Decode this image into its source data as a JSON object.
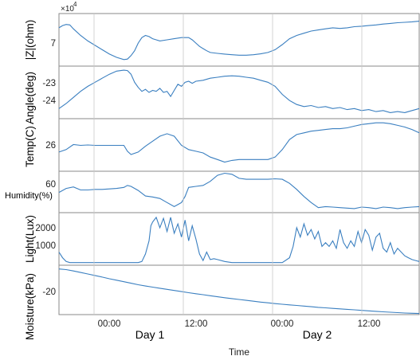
{
  "chart_data": {
    "type": "line",
    "xlabel": "Time",
    "x_tick_labels": [
      "00:00",
      "12:00",
      "00:00",
      "12:00"
    ],
    "day_labels": [
      "Day 1",
      "Day 2"
    ],
    "series_color": "#3a7fc0",
    "panels": [
      {
        "id": "impedance",
        "ylabel": "|Z|(ohm)",
        "exponent_label": "×10",
        "exponent_power": "4",
        "yticks": [
          {
            "label": "7",
            "value": 7.0
          }
        ],
        "ylim": [
          5.8,
          8.2
        ],
        "x": [
          0,
          1,
          2,
          3,
          4,
          6,
          8,
          10,
          12,
          14,
          16,
          18,
          19,
          20,
          21,
          22,
          23,
          24,
          25,
          26,
          27,
          28,
          30,
          32,
          34,
          36,
          37,
          38,
          39,
          40,
          41,
          42,
          44,
          46,
          48,
          50,
          52,
          54,
          56,
          58,
          60,
          62,
          64,
          66,
          68,
          70,
          72,
          74,
          76,
          78,
          80,
          82,
          84,
          86,
          88,
          90,
          92,
          94,
          96,
          98,
          100
        ],
        "y": [
          7.55,
          7.65,
          7.7,
          7.68,
          7.5,
          7.2,
          6.95,
          6.75,
          6.55,
          6.35,
          6.2,
          6.1,
          6.12,
          6.28,
          6.5,
          6.85,
          7.1,
          7.2,
          7.15,
          7.05,
          7.0,
          6.95,
          7.0,
          7.05,
          7.1,
          7.1,
          7.0,
          6.85,
          6.7,
          6.6,
          6.5,
          6.42,
          6.38,
          6.35,
          6.32,
          6.3,
          6.3,
          6.32,
          6.36,
          6.42,
          6.55,
          6.78,
          7.05,
          7.2,
          7.3,
          7.4,
          7.45,
          7.5,
          7.55,
          7.52,
          7.55,
          7.6,
          7.62,
          7.65,
          7.68,
          7.72,
          7.75,
          7.78,
          7.8,
          7.82,
          7.85
        ]
      },
      {
        "id": "angle",
        "ylabel": "Angle(deg)",
        "yticks": [
          {
            "label": "-23",
            "value": -23.0
          },
          {
            "label": "-24",
            "value": -24.0
          }
        ],
        "ylim": [
          -24.9,
          -22.3
        ],
        "x": [
          0,
          2,
          4,
          6,
          8,
          10,
          12,
          14,
          16,
          18,
          19,
          20,
          21,
          22,
          23,
          24,
          25,
          26,
          27,
          28,
          29,
          30,
          31,
          32,
          33,
          34,
          35,
          36,
          37,
          38,
          40,
          42,
          44,
          46,
          48,
          50,
          52,
          54,
          56,
          58,
          60,
          62,
          64,
          66,
          68,
          70,
          72,
          74,
          76,
          78,
          80,
          82,
          84,
          86,
          88,
          90,
          92,
          94,
          96,
          98,
          100
        ],
        "y": [
          -24.4,
          -24.15,
          -23.85,
          -23.55,
          -23.3,
          -23.1,
          -22.9,
          -22.7,
          -22.55,
          -22.5,
          -22.52,
          -22.7,
          -23.1,
          -23.35,
          -23.55,
          -23.45,
          -23.6,
          -23.5,
          -23.55,
          -23.4,
          -23.6,
          -23.55,
          -23.8,
          -23.5,
          -23.2,
          -23.3,
          -23.1,
          -23.05,
          -23.15,
          -23.05,
          -23.0,
          -22.9,
          -22.85,
          -22.8,
          -22.78,
          -22.8,
          -22.85,
          -22.9,
          -23.0,
          -23.1,
          -23.3,
          -23.7,
          -24.0,
          -24.2,
          -24.3,
          -24.25,
          -24.35,
          -24.3,
          -24.4,
          -24.35,
          -24.45,
          -24.4,
          -24.5,
          -24.45,
          -24.55,
          -24.5,
          -24.6,
          -24.55,
          -24.6,
          -24.5,
          -24.4
        ]
      },
      {
        "id": "temperature",
        "ylabel": "Temp(C)",
        "yticks": [
          {
            "label": "26",
            "value": 26.0
          }
        ],
        "ylim": [
          23.2,
          29.5
        ],
        "x": [
          0,
          2,
          4,
          6,
          8,
          10,
          12,
          14,
          16,
          18,
          19,
          20,
          22,
          24,
          26,
          28,
          30,
          32,
          34,
          36,
          38,
          40,
          42,
          44,
          46,
          48,
          50,
          52,
          54,
          56,
          58,
          60,
          62,
          64,
          66,
          68,
          70,
          72,
          74,
          76,
          78,
          80,
          82,
          84,
          86,
          88,
          90,
          92,
          94,
          96,
          98,
          100
        ],
        "y": [
          25.5,
          25.8,
          26.4,
          26.3,
          26.35,
          26.3,
          26.3,
          26.3,
          26.3,
          26.3,
          25.6,
          25.2,
          25.5,
          26.2,
          26.8,
          27.4,
          27.7,
          27.4,
          26.3,
          25.8,
          25.6,
          25.4,
          24.9,
          24.6,
          24.3,
          24.5,
          24.6,
          24.6,
          24.6,
          24.6,
          24.6,
          24.9,
          25.8,
          27.0,
          27.6,
          27.8,
          28.0,
          28.1,
          28.2,
          28.3,
          28.3,
          28.4,
          28.6,
          28.8,
          28.9,
          29.0,
          29.0,
          28.9,
          28.7,
          28.5,
          28.2,
          27.8
        ]
      },
      {
        "id": "humidity",
        "ylabel": "Humidity(%)",
        "yticks": [
          {
            "label": "60",
            "value": 60.0
          }
        ],
        "ylim": [
          32.0,
          73.0
        ],
        "x": [
          0,
          2,
          4,
          6,
          8,
          10,
          12,
          14,
          16,
          18,
          19,
          20,
          22,
          24,
          26,
          28,
          30,
          32,
          34,
          35,
          36,
          38,
          40,
          42,
          44,
          46,
          48,
          50,
          52,
          54,
          56,
          58,
          60,
          62,
          64,
          66,
          68,
          70,
          72,
          74,
          76,
          78,
          80,
          82,
          84,
          86,
          88,
          90,
          92,
          94,
          96,
          98,
          100
        ],
        "y": [
          52.0,
          56.0,
          57.5,
          54.5,
          54.5,
          55.0,
          55.0,
          55.5,
          56.0,
          57.0,
          59.0,
          58.0,
          54.0,
          48.5,
          47.5,
          46.0,
          42.0,
          38.0,
          42.0,
          48.0,
          57.0,
          58.0,
          59.0,
          63.0,
          69.0,
          71.0,
          70.0,
          66.0,
          65.0,
          65.0,
          65.0,
          65.0,
          65.5,
          65.0,
          61.0,
          55.0,
          48.0,
          42.0,
          37.0,
          38.0,
          37.5,
          37.0,
          36.5,
          36.0,
          37.5,
          37.0,
          36.0,
          37.5,
          37.0,
          36.0,
          37.0,
          37.5,
          38.0
        ]
      },
      {
        "id": "light",
        "ylabel": "Light(Lux)",
        "yticks": [
          {
            "label": "2000",
            "value": 2000
          },
          {
            "label": "1000",
            "value": 1000
          }
        ],
        "ylim": [
          -100,
          2700
        ],
        "x": [
          0,
          1,
          2,
          3,
          4,
          6,
          8,
          10,
          12,
          14,
          16,
          18,
          20,
          22,
          23,
          24,
          25,
          25.5,
          26,
          27,
          28,
          29,
          30,
          31,
          32,
          33,
          34,
          35,
          36,
          37,
          38,
          39,
          40,
          41,
          42,
          43,
          44,
          46,
          48,
          50,
          52,
          54,
          56,
          58,
          60,
          62,
          64,
          65,
          66,
          67,
          68,
          69,
          70,
          71,
          72,
          73,
          74,
          75,
          76,
          77,
          78,
          79,
          80,
          81,
          82,
          83,
          84,
          85,
          86,
          87,
          88,
          89,
          90,
          91,
          92,
          93,
          94,
          95,
          96,
          97,
          98,
          99,
          100
        ],
        "y": [
          600,
          300,
          100,
          40,
          40,
          40,
          40,
          40,
          40,
          40,
          40,
          40,
          40,
          40,
          100,
          500,
          1200,
          2000,
          2200,
          2450,
          1900,
          2400,
          1700,
          2450,
          1600,
          2100,
          1400,
          2300,
          1200,
          2000,
          1300,
          500,
          150,
          600,
          200,
          250,
          200,
          100,
          40,
          40,
          40,
          40,
          40,
          40,
          40,
          40,
          300,
          900,
          1900,
          1400,
          2100,
          1500,
          1800,
          1300,
          1700,
          900,
          1100,
          900,
          1200,
          800,
          1800,
          1100,
          800,
          1200,
          900,
          1700,
          1100,
          1800,
          1500,
          700,
          1400,
          1600,
          800,
          600,
          1100,
          500,
          800,
          600,
          400,
          300,
          200,
          150,
          100
        ]
      },
      {
        "id": "moisture",
        "ylabel": "Moisture(kPa)",
        "yticks": [
          {
            "label": "-20",
            "value": -20
          }
        ],
        "ylim": [
          -36.5,
          3.0
        ],
        "x": [
          0,
          2,
          4,
          6,
          8,
          10,
          12,
          14,
          16,
          18,
          20,
          22,
          24,
          26,
          28,
          30,
          32,
          34,
          36,
          38,
          40,
          42,
          44,
          46,
          48,
          50,
          52,
          54,
          56,
          58,
          60,
          62,
          64,
          66,
          68,
          70,
          72,
          74,
          76,
          78,
          80,
          82,
          84,
          86,
          88,
          90,
          92,
          94,
          96,
          98,
          100
        ],
        "y": [
          0.0,
          -0.5,
          -1.6,
          -2.8,
          -4.0,
          -5.2,
          -6.5,
          -7.8,
          -9.0,
          -10.2,
          -11.4,
          -12.6,
          -13.6,
          -14.5,
          -15.4,
          -16.3,
          -17.2,
          -18.1,
          -19.0,
          -19.8,
          -20.6,
          -21.4,
          -22.2,
          -23.0,
          -23.7,
          -24.4,
          -25.1,
          -25.8,
          -26.5,
          -27.1,
          -27.7,
          -28.2,
          -28.7,
          -29.2,
          -29.7,
          -30.2,
          -30.7,
          -31.1,
          -31.5,
          -31.9,
          -32.3,
          -32.7,
          -33.1,
          -33.5,
          -33.9,
          -34.3,
          -34.6,
          -34.9,
          -35.2,
          -35.4,
          -35.6
        ]
      }
    ]
  }
}
